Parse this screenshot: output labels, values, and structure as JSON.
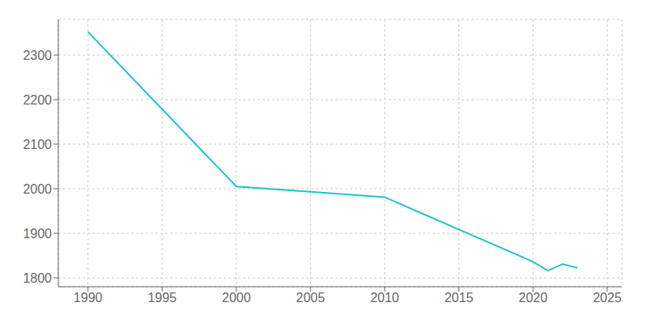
{
  "chart_data": {
    "type": "line",
    "x": [
      1990,
      2000,
      2005,
      2010,
      2020,
      2021,
      2022,
      2023
    ],
    "values": [
      2352,
      2005,
      1993,
      1981,
      1836,
      1816,
      1831,
      1822
    ],
    "color": "#20c5c5",
    "xlim": [
      1988,
      2026
    ],
    "ylim": [
      1780,
      2380
    ],
    "xticks": [
      1990,
      1995,
      2000,
      2005,
      2010,
      2015,
      2020,
      2025
    ],
    "yticks": [
      1800,
      1900,
      2000,
      2100,
      2200,
      2300
    ],
    "grid": true
  }
}
